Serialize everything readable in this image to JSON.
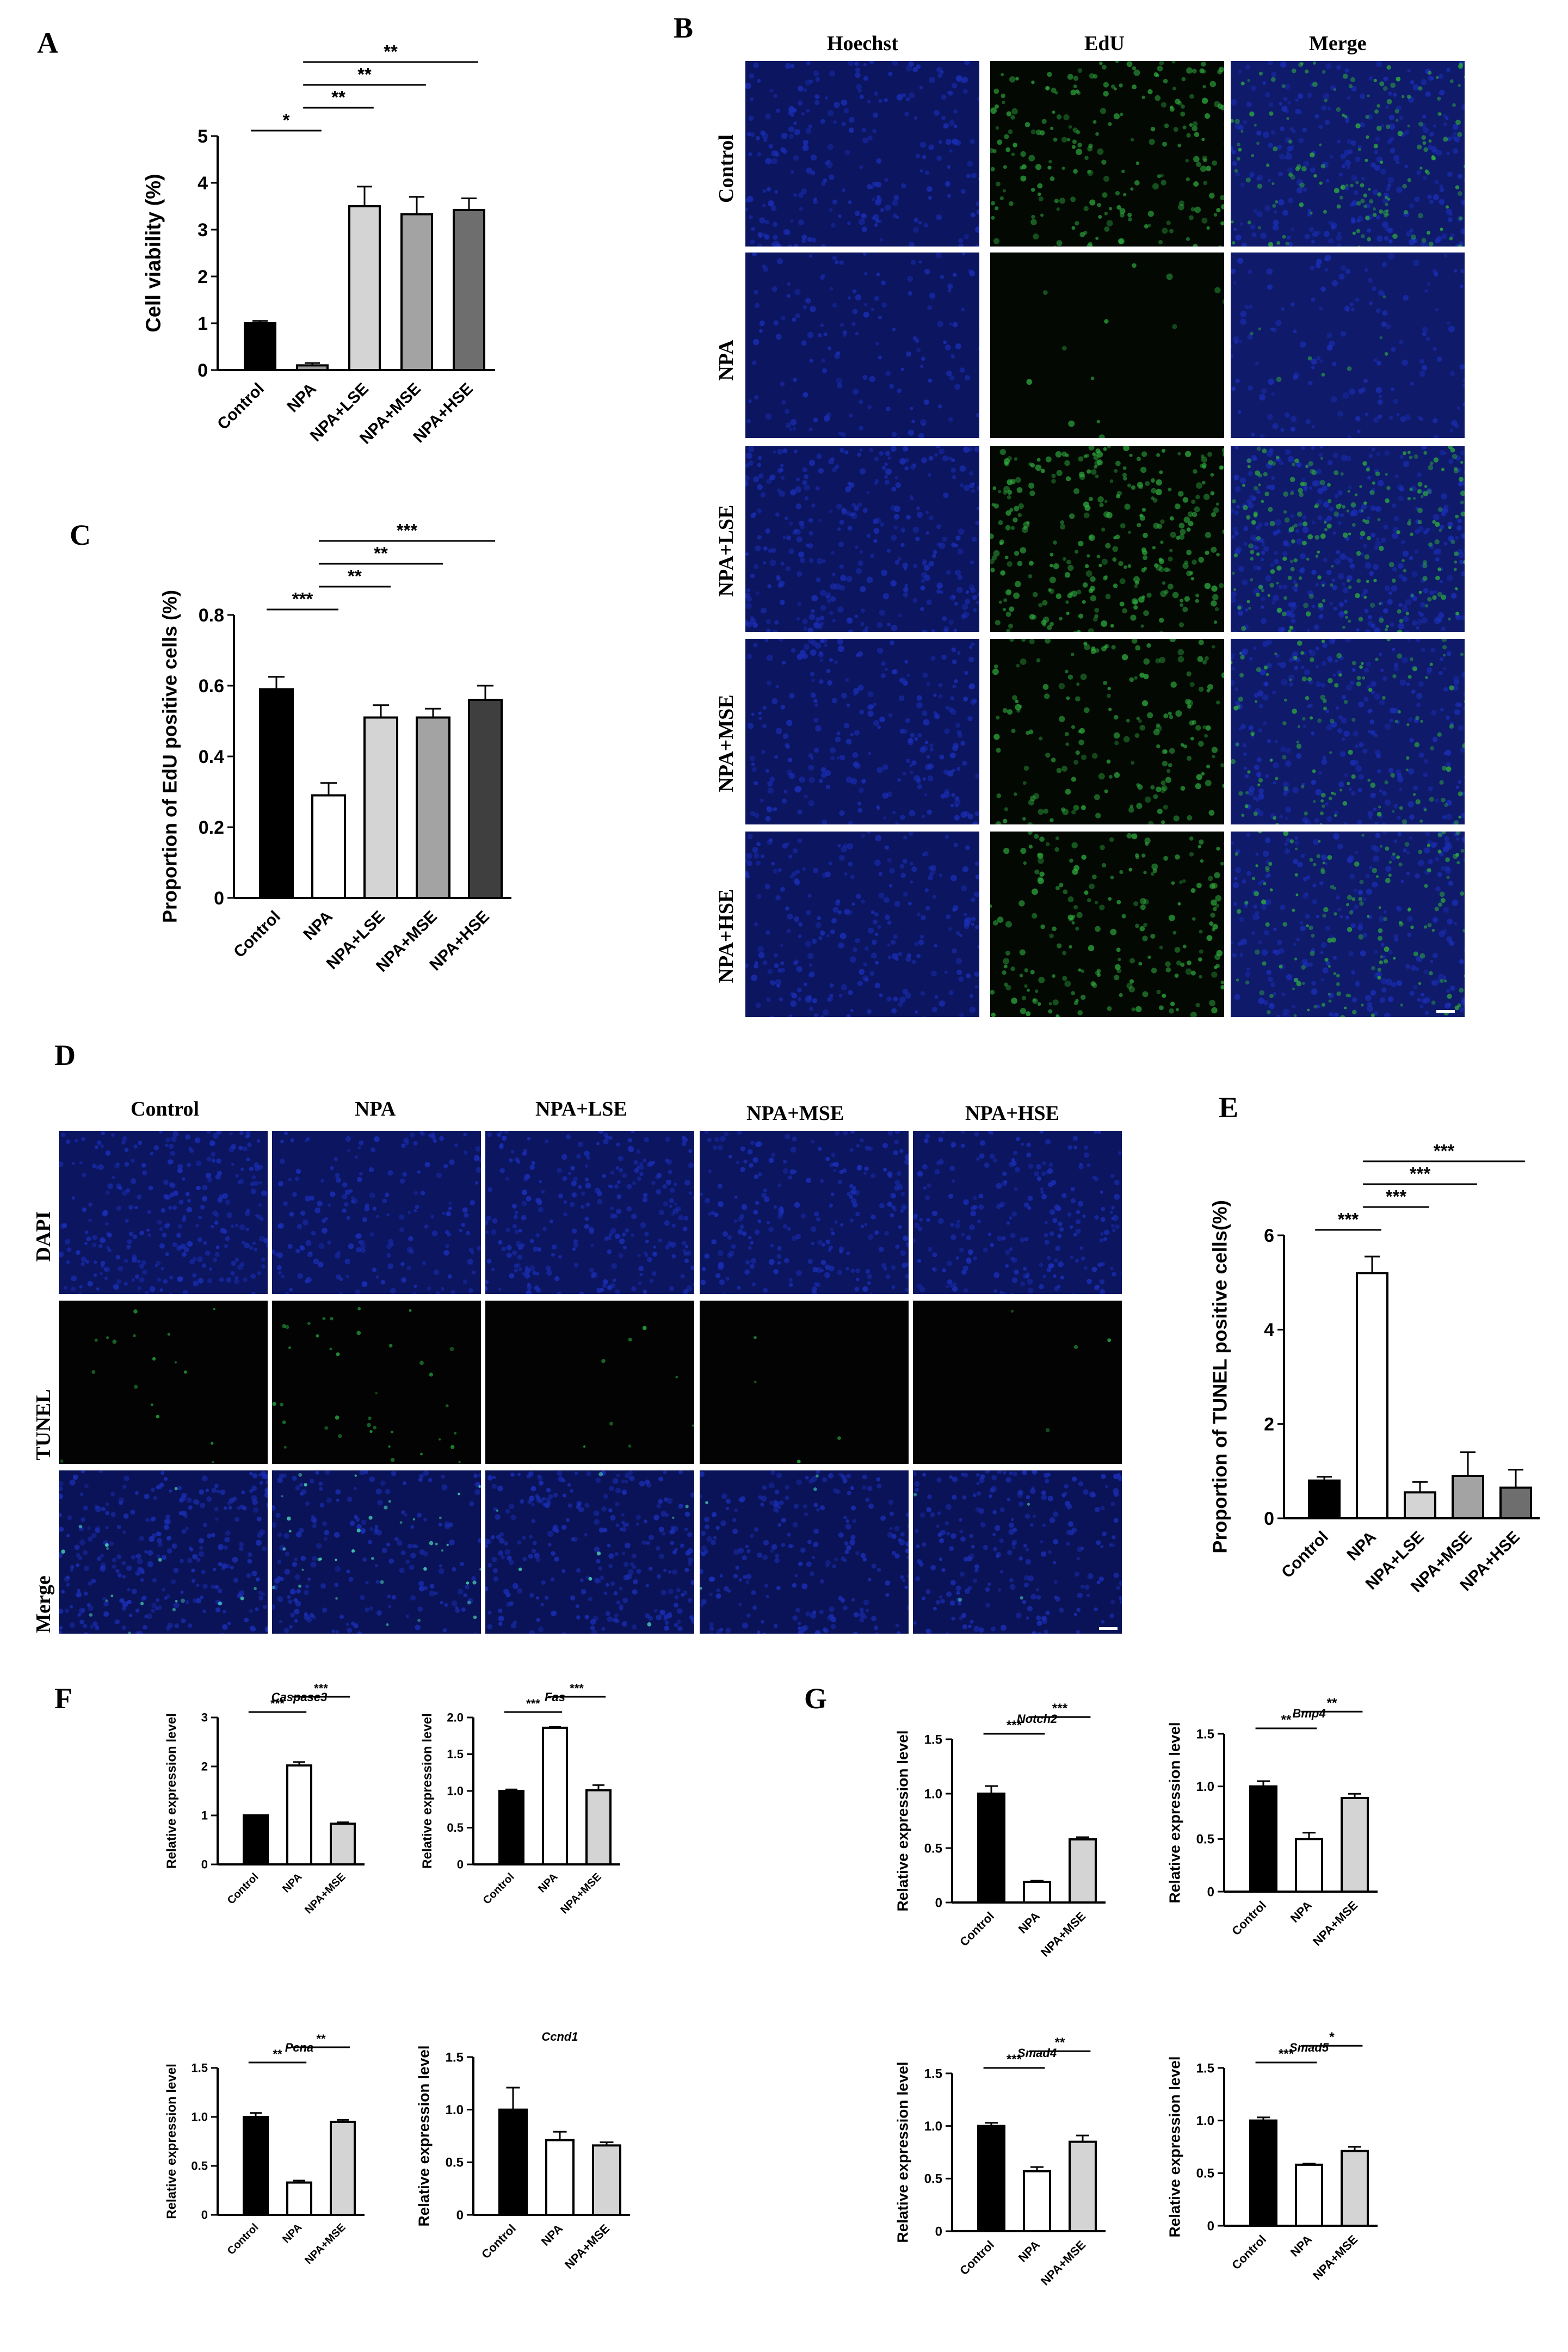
{
  "panel_labels": [
    "A",
    "B",
    "C",
    "D",
    "E",
    "F",
    "G"
  ],
  "figure_b": {
    "columns": [
      "Hoechst",
      "EdU",
      "Merge"
    ],
    "rows": [
      "Control",
      "NPA",
      "NPA+LSE",
      "NPA+MSE",
      "NPA+HSE"
    ],
    "channel_colors": {
      "hoechst": "#1b2fb8",
      "edu": "#2fae3f",
      "merge_bg": "#0f1a6a"
    },
    "green_density": [
      0.55,
      0.03,
      0.75,
      0.45,
      0.5
    ],
    "blue_density": [
      0.6,
      0.35,
      0.75,
      0.6,
      0.6
    ]
  },
  "figure_d": {
    "columns": [
      "Control",
      "NPA",
      "NPA+LSE",
      "NPA+MSE",
      "NPA+HSE"
    ],
    "rows": [
      "DAPI",
      "TUNEL",
      "Merge"
    ],
    "tunel_density": [
      0.04,
      0.09,
      0.02,
      0.01,
      0.01
    ],
    "blue_density": [
      0.7,
      0.45,
      0.65,
      0.55,
      0.55
    ]
  },
  "colors": {
    "black": "#000000",
    "white": "#ffffff",
    "light_gray": "#d4d4d4",
    "mid_gray": "#a3a3a3",
    "dark_gray": "#6e6e6e",
    "darkest_gray": "#3f3f3f"
  },
  "chart_data": [
    {
      "id": "A",
      "type": "bar",
      "title": "",
      "xlabel": "",
      "ylabel": "Cell viability (%)",
      "categories": [
        "Control",
        "NPA",
        "NPA+LSE",
        "NPA+MSE",
        "NPA+HSE"
      ],
      "values": [
        1.0,
        0.1,
        3.5,
        3.33,
        3.42
      ],
      "errors": [
        0.05,
        0.05,
        0.42,
        0.37,
        0.25
      ],
      "fills": [
        "#000000",
        "#9a9a9a",
        "#d4d4d4",
        "#a3a3a3",
        "#6e6e6e"
      ],
      "ylim": [
        0,
        5
      ],
      "yticks": [
        "0",
        "1",
        "2",
        "3",
        "4",
        "5"
      ],
      "significance": [
        {
          "from": 0,
          "to": 1,
          "label": "*"
        },
        {
          "from": 1,
          "to": 2,
          "label": "**"
        },
        {
          "from": 1,
          "to": 3,
          "label": "**"
        },
        {
          "from": 1,
          "to": 4,
          "label": "**"
        }
      ]
    },
    {
      "id": "C",
      "type": "bar",
      "title": "",
      "xlabel": "",
      "ylabel": "Proportion of EdU positive cells (%)",
      "categories": [
        "Control",
        "NPA",
        "NPA+LSE",
        "NPA+MSE",
        "NPA+HSE"
      ],
      "values": [
        0.59,
        0.29,
        0.51,
        0.51,
        0.56
      ],
      "errors": [
        0.035,
        0.035,
        0.035,
        0.025,
        0.04
      ],
      "fills": [
        "#000000",
        "#ffffff",
        "#d4d4d4",
        "#a3a3a3",
        "#3f3f3f"
      ],
      "ylim": [
        0,
        0.8
      ],
      "yticks": [
        "0",
        "0.2",
        "0.4",
        "0.6",
        "0.8"
      ],
      "significance": [
        {
          "from": 0,
          "to": 1,
          "label": "***"
        },
        {
          "from": 1,
          "to": 2,
          "label": "**"
        },
        {
          "from": 1,
          "to": 3,
          "label": "**"
        },
        {
          "from": 1,
          "to": 4,
          "label": "***"
        }
      ]
    },
    {
      "id": "E",
      "type": "bar",
      "title": "",
      "xlabel": "",
      "ylabel": "Proportion of TUNEL positive cells(%)",
      "categories": [
        "Control",
        "NPA",
        "NPA+LSE",
        "NPA+MSE",
        "NPA+HSE"
      ],
      "values": [
        0.8,
        5.2,
        0.55,
        0.9,
        0.65
      ],
      "errors": [
        0.08,
        0.35,
        0.22,
        0.5,
        0.38
      ],
      "fills": [
        "#000000",
        "#ffffff",
        "#d4d4d4",
        "#a3a3a3",
        "#6e6e6e"
      ],
      "ylim": [
        0,
        6
      ],
      "yticks": [
        "0",
        "2",
        "4",
        "6"
      ],
      "significance": [
        {
          "from": 0,
          "to": 1,
          "label": "***"
        },
        {
          "from": 1,
          "to": 2,
          "label": "***"
        },
        {
          "from": 1,
          "to": 3,
          "label": "***"
        },
        {
          "from": 1,
          "to": 4,
          "label": "***"
        }
      ]
    },
    {
      "id": "F1",
      "type": "bar",
      "title": "Caspase3",
      "xlabel": "",
      "ylabel": "Relative expression level",
      "categories": [
        "Control",
        "NPA",
        "NPA+MSE"
      ],
      "values": [
        1.0,
        2.02,
        0.83
      ],
      "errors": [
        0.0,
        0.07,
        0.03
      ],
      "fills": [
        "#000000",
        "#ffffff",
        "#d4d4d4"
      ],
      "ylim": [
        0,
        3
      ],
      "yticks": [
        "0",
        "1",
        "2",
        "3"
      ],
      "significance": [
        {
          "from": 0,
          "to": 1,
          "label": "***"
        },
        {
          "from": 1,
          "to": 2,
          "label": "***"
        }
      ]
    },
    {
      "id": "F2",
      "type": "bar",
      "title": "Fas",
      "xlabel": "",
      "ylabel": "Relative expression level",
      "categories": [
        "Control",
        "NPA",
        "NPA+MSE"
      ],
      "values": [
        1.0,
        1.86,
        1.01
      ],
      "errors": [
        0.02,
        0.01,
        0.07
      ],
      "fills": [
        "#000000",
        "#ffffff",
        "#d4d4d4"
      ],
      "ylim": [
        0,
        2.0
      ],
      "yticks": [
        "0",
        "0.5",
        "1.0",
        "1.5",
        "2.0"
      ],
      "significance": [
        {
          "from": 0,
          "to": 1,
          "label": "***"
        },
        {
          "from": 1,
          "to": 2,
          "label": "***"
        }
      ]
    },
    {
      "id": "F3",
      "type": "bar",
      "title": "Pcna",
      "xlabel": "",
      "ylabel": "Relative expression level",
      "categories": [
        "Control",
        "NPA",
        "NPA+MSE"
      ],
      "values": [
        1.0,
        0.33,
        0.95
      ],
      "errors": [
        0.04,
        0.02,
        0.02
      ],
      "fills": [
        "#000000",
        "#ffffff",
        "#d4d4d4"
      ],
      "ylim": [
        0,
        1.5
      ],
      "yticks": [
        "0",
        "0.5",
        "1.0",
        "1.5"
      ],
      "significance": [
        {
          "from": 0,
          "to": 1,
          "label": "**"
        },
        {
          "from": 1,
          "to": 2,
          "label": "**"
        }
      ]
    },
    {
      "id": "F4",
      "type": "bar",
      "title": "Ccnd1",
      "xlabel": "",
      "ylabel": "Relative expression level",
      "categories": [
        "Control",
        "NPA",
        "NPA+MSE"
      ],
      "values": [
        1.0,
        0.71,
        0.66
      ],
      "errors": [
        0.21,
        0.08,
        0.03
      ],
      "fills": [
        "#000000",
        "#ffffff",
        "#d4d4d4"
      ],
      "ylim": [
        0,
        1.5
      ],
      "yticks": [
        "0",
        "0.5",
        "1.0",
        "1.5"
      ],
      "significance": []
    },
    {
      "id": "G1",
      "type": "bar",
      "title": "Notch2",
      "xlabel": "",
      "ylabel": "Relative expression level",
      "categories": [
        "Control",
        "NPA",
        "NPA+MSE"
      ],
      "values": [
        1.0,
        0.19,
        0.58
      ],
      "errors": [
        0.07,
        0.01,
        0.02
      ],
      "fills": [
        "#000000",
        "#ffffff",
        "#d4d4d4"
      ],
      "ylim": [
        0,
        1.5
      ],
      "yticks": [
        "0",
        "0.5",
        "1.0",
        "1.5"
      ],
      "significance": [
        {
          "from": 0,
          "to": 1,
          "label": "***"
        },
        {
          "from": 1,
          "to": 2,
          "label": "***"
        }
      ]
    },
    {
      "id": "G2",
      "type": "bar",
      "title": "Bmp4",
      "xlabel": "",
      "ylabel": "Relative expression level",
      "categories": [
        "Control",
        "NPA",
        "NPA+MSE"
      ],
      "values": [
        1.0,
        0.5,
        0.89
      ],
      "errors": [
        0.05,
        0.06,
        0.04
      ],
      "fills": [
        "#000000",
        "#ffffff",
        "#d4d4d4"
      ],
      "ylim": [
        0,
        1.5
      ],
      "yticks": [
        "0",
        "0.5",
        "1.0",
        "1.5"
      ],
      "significance": [
        {
          "from": 0,
          "to": 1,
          "label": "**"
        },
        {
          "from": 1,
          "to": 2,
          "label": "**"
        }
      ]
    },
    {
      "id": "G3",
      "type": "bar",
      "title": "Smad4",
      "xlabel": "",
      "ylabel": "Relative expression level",
      "categories": [
        "Control",
        "NPA",
        "NPA+MSE"
      ],
      "values": [
        1.0,
        0.57,
        0.85
      ],
      "errors": [
        0.03,
        0.04,
        0.06
      ],
      "fills": [
        "#000000",
        "#ffffff",
        "#d4d4d4"
      ],
      "ylim": [
        0,
        1.5
      ],
      "yticks": [
        "0",
        "0.5",
        "1.0",
        "1.5"
      ],
      "significance": [
        {
          "from": 0,
          "to": 1,
          "label": "***"
        },
        {
          "from": 1,
          "to": 2,
          "label": "**"
        }
      ]
    },
    {
      "id": "G4",
      "type": "bar",
      "title": "Smad5",
      "xlabel": "",
      "ylabel": "Relative expression level",
      "categories": [
        "Control",
        "NPA",
        "NPA+MSE"
      ],
      "values": [
        1.0,
        0.58,
        0.71
      ],
      "errors": [
        0.03,
        0.01,
        0.04
      ],
      "fills": [
        "#000000",
        "#ffffff",
        "#d4d4d4"
      ],
      "ylim": [
        0,
        1.5
      ],
      "yticks": [
        "0",
        "0.5",
        "1.0",
        "1.5"
      ],
      "significance": [
        {
          "from": 0,
          "to": 1,
          "label": "***"
        },
        {
          "from": 1,
          "to": 2,
          "label": "*"
        }
      ]
    }
  ]
}
